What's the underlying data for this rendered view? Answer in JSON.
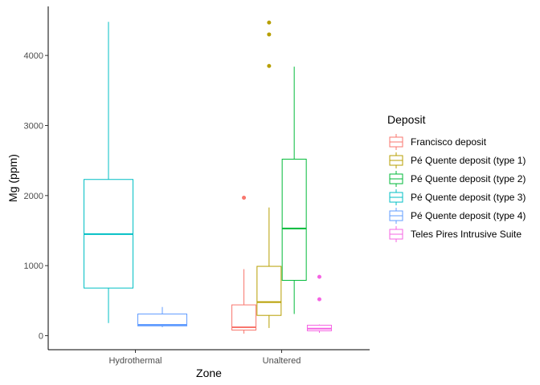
{
  "chart_data": {
    "type": "boxplot",
    "xlabel": "Zone",
    "ylabel": "Mg (ppm)",
    "ylim": [
      -200,
      4700
    ],
    "yticks": [
      0,
      1000,
      2000,
      3000,
      4000
    ],
    "categories": [
      "Hydrothermal",
      "Unaltered"
    ],
    "legend_title": "Deposit",
    "legend_position": "right",
    "grid": false,
    "series": [
      {
        "name": "Francisco deposit",
        "color": "#F8766D"
      },
      {
        "name": "Pé Quente deposit (type 1)",
        "color": "#B79F00"
      },
      {
        "name": "Pé Quente deposit (type 2)",
        "color": "#00BA38"
      },
      {
        "name": "Pé Quente deposit (type 3)",
        "color": "#00BFC4"
      },
      {
        "name": "Pé Quente deposit (type 4)",
        "color": "#619CFF"
      },
      {
        "name": "Teles Pires Intrusive Suite",
        "color": "#F564E3"
      }
    ],
    "boxes": [
      {
        "category": "Hydrothermal",
        "series": "Pé Quente deposit (type 3)",
        "min": 180,
        "q1": 680,
        "median": 1450,
        "q3": 2230,
        "max": 4480,
        "outliers": []
      },
      {
        "category": "Hydrothermal",
        "series": "Pé Quente deposit (type 4)",
        "min": 120,
        "q1": 140,
        "median": 155,
        "q3": 310,
        "max": 410,
        "outliers": []
      },
      {
        "category": "Unaltered",
        "series": "Francisco deposit",
        "min": 30,
        "q1": 80,
        "median": 120,
        "q3": 440,
        "max": 950,
        "outliers": [
          1970
        ]
      },
      {
        "category": "Unaltered",
        "series": "Pé Quente deposit (type 1)",
        "min": 110,
        "q1": 290,
        "median": 480,
        "q3": 990,
        "max": 1830,
        "outliers": [
          3850,
          4300,
          4470
        ]
      },
      {
        "category": "Unaltered",
        "series": "Pé Quente deposit (type 2)",
        "min": 310,
        "q1": 790,
        "median": 1530,
        "q3": 2520,
        "max": 3840,
        "outliers": []
      },
      {
        "category": "Unaltered",
        "series": "Teles Pires Intrusive Suite",
        "min": 40,
        "q1": 70,
        "median": 100,
        "q3": 150,
        "max": 160,
        "outliers": [
          520,
          840
        ]
      }
    ]
  }
}
